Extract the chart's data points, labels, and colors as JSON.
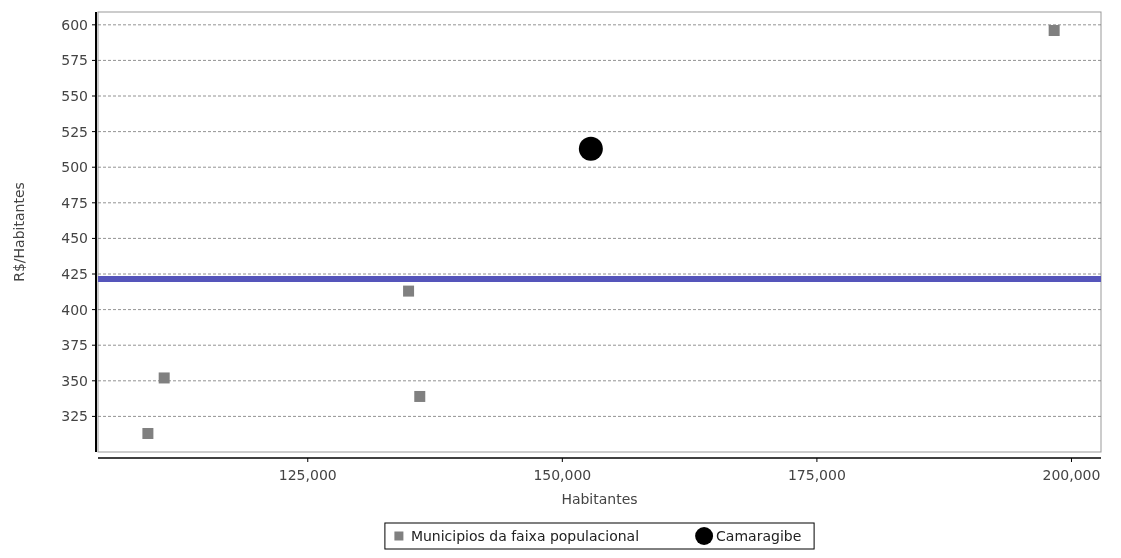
{
  "chart_data": {
    "type": "scatter",
    "xlabel": "Habitantes",
    "ylabel": "R$/Habitantes",
    "xlim": [
      104400,
      202900
    ],
    "ylim": [
      300,
      609
    ],
    "xticks": [
      {
        "value": 125000,
        "label": "125,000"
      },
      {
        "value": 150000,
        "label": "150,000"
      },
      {
        "value": 175000,
        "label": "175,000"
      },
      {
        "value": 200000,
        "label": "200,000"
      }
    ],
    "yticks": [
      325,
      350,
      375,
      400,
      425,
      450,
      475,
      500,
      525,
      550,
      575,
      600
    ],
    "grid": "y",
    "legend": "bottom",
    "series": [
      {
        "name": "Municipios da faixa populacional",
        "color": "#808080",
        "marker": "square",
        "x": [
          109300,
          110900,
          134900,
          136000,
          198300
        ],
        "values": [
          313,
          352,
          413,
          339,
          596
        ]
      },
      {
        "name": "Camaragibe",
        "color": "#000000",
        "marker": "circle",
        "x": [
          152800
        ],
        "values": [
          513
        ]
      }
    ],
    "ref_lines": [
      {
        "axis": "y",
        "value": 421.5,
        "color": "#5555bb"
      }
    ]
  }
}
